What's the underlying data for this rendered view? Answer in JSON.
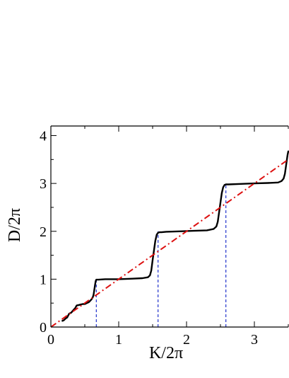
{
  "chart_data": {
    "type": "line",
    "xlabel": "K/2π",
    "ylabel": "D/2π",
    "xlim": [
      0,
      3.5
    ],
    "ylim": [
      0,
      4.2
    ],
    "xticks": [
      0,
      1,
      2,
      3
    ],
    "yticks": [
      0,
      1,
      2,
      3,
      4
    ],
    "grid": false,
    "legend": "none",
    "colors": {
      "staircase": "#000000",
      "reference": "#dd1111",
      "markers": "#2233cc"
    },
    "series": [
      {
        "style": "solid",
        "color": "#000000",
        "x": [
          0.17,
          0.19,
          0.22,
          0.24,
          0.27,
          0.3,
          0.33,
          0.36,
          0.38,
          0.41,
          0.44,
          0.47,
          0.5,
          0.53,
          0.56,
          0.58,
          0.6,
          0.62,
          0.63,
          0.64,
          0.65,
          0.66,
          0.67,
          0.7,
          0.8,
          1.0,
          1.2,
          1.35,
          1.43,
          1.46,
          1.48,
          1.5,
          1.52,
          1.54,
          1.56,
          1.58,
          1.6,
          1.63,
          1.7,
          1.9,
          2.1,
          2.3,
          2.4,
          2.44,
          2.46,
          2.48,
          2.5,
          2.52,
          2.54,
          2.56,
          2.58,
          2.62,
          2.8,
          3.0,
          3.2,
          3.35,
          3.4,
          3.43,
          3.45,
          3.47,
          3.49,
          3.5
        ],
        "y": [
          0.13,
          0.14,
          0.18,
          0.2,
          0.28,
          0.3,
          0.35,
          0.4,
          0.45,
          0.46,
          0.47,
          0.48,
          0.48,
          0.5,
          0.52,
          0.55,
          0.58,
          0.63,
          0.68,
          0.77,
          0.87,
          0.96,
          0.99,
          0.99,
          1.0,
          1.0,
          1.01,
          1.02,
          1.04,
          1.08,
          1.18,
          1.4,
          1.6,
          1.8,
          1.93,
          1.97,
          1.98,
          1.98,
          1.99,
          2.0,
          2.01,
          2.02,
          2.05,
          2.1,
          2.2,
          2.4,
          2.6,
          2.8,
          2.92,
          2.97,
          2.98,
          2.98,
          2.99,
          3.0,
          3.01,
          3.02,
          3.05,
          3.1,
          3.2,
          3.4,
          3.6,
          3.67
        ]
      },
      {
        "style": "dash-dot",
        "color": "#dd1111",
        "x": [
          0,
          3.5
        ],
        "y": [
          0,
          3.5
        ]
      }
    ],
    "markers": {
      "style": "dashed",
      "color": "#2233cc",
      "x": [
        0.67,
        1.58,
        2.58
      ]
    }
  }
}
